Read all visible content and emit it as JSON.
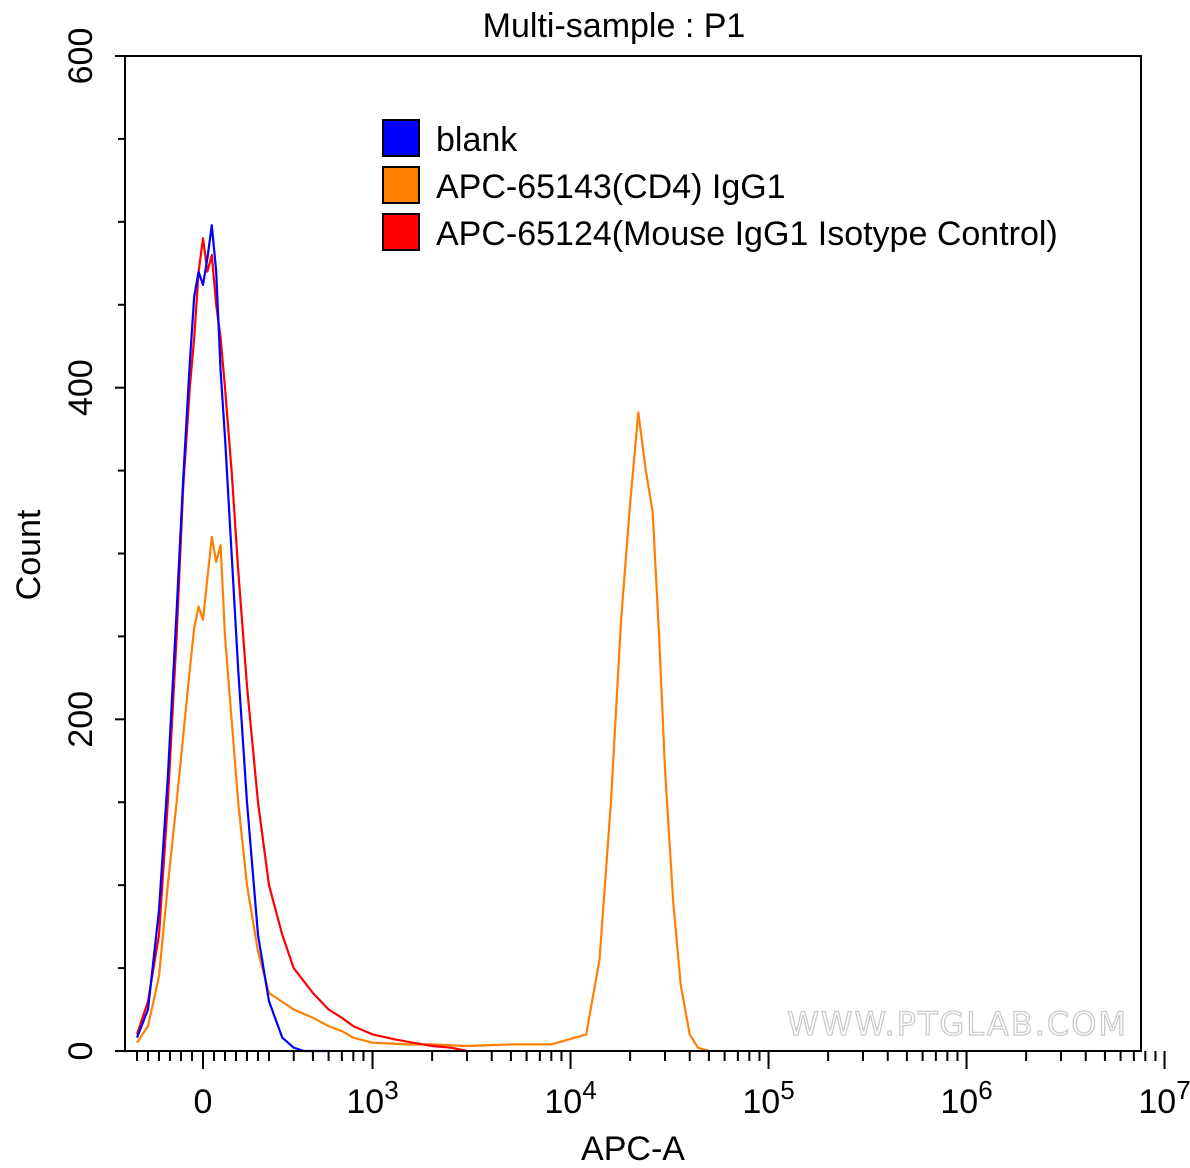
{
  "chart_data": {
    "type": "line",
    "title": "Multi-sample : P1",
    "xlabel": "APC-A",
    "ylabel": "Count",
    "x_scale": "biexponential",
    "xlim": [
      -300,
      10000000
    ],
    "ylim": [
      0,
      600
    ],
    "y_ticks": [
      {
        "value": 0,
        "label": "0"
      },
      {
        "value": 200,
        "label": "200"
      },
      {
        "value": 400,
        "label": "400"
      },
      {
        "value": 600,
        "label": "600"
      }
    ],
    "x_ticks": [
      {
        "value": 0,
        "base": "0",
        "exp": ""
      },
      {
        "value": 1000,
        "base": "10",
        "exp": "3"
      },
      {
        "value": 10000,
        "base": "10",
        "exp": "4"
      },
      {
        "value": 100000,
        "base": "10",
        "exp": "5"
      },
      {
        "value": 1000000,
        "base": "10",
        "exp": "6"
      },
      {
        "value": 10000000,
        "base": "10",
        "exp": "7"
      }
    ],
    "grid": false,
    "legend_position": "top-center",
    "watermark": "WWW.PTGLAB.COM",
    "series": [
      {
        "name": "blank",
        "color": "#0000ff",
        "x": [
          -300,
          -250,
          -200,
          -160,
          -120,
          -90,
          -60,
          -40,
          -20,
          0,
          20,
          40,
          60,
          80,
          100,
          130,
          160,
          200,
          250,
          300,
          350,
          400,
          450,
          500,
          550,
          600
        ],
        "y": [
          8,
          25,
          85,
          165,
          265,
          345,
          415,
          455,
          470,
          462,
          478,
          498,
          470,
          410,
          370,
          300,
          230,
          150,
          70,
          30,
          8,
          2,
          0,
          0,
          0,
          0
        ]
      },
      {
        "name": "APC-65143(CD4) IgG1",
        "color": "#ff8000",
        "x": [
          -300,
          -250,
          -200,
          -160,
          -120,
          -90,
          -60,
          -40,
          -20,
          0,
          20,
          40,
          60,
          80,
          100,
          130,
          160,
          200,
          250,
          300,
          400,
          500,
          600,
          700,
          800,
          1000,
          1500,
          2000,
          3000,
          5000,
          8000,
          12000,
          14000,
          16000,
          18000,
          20000,
          22000,
          24000,
          26000,
          28000,
          30000,
          33000,
          36000,
          40000,
          44000,
          50000
        ],
        "y": [
          5,
          15,
          45,
          100,
          150,
          190,
          230,
          255,
          268,
          260,
          285,
          310,
          295,
          305,
          250,
          200,
          150,
          100,
          60,
          35,
          25,
          20,
          15,
          12,
          8,
          5,
          4,
          4,
          3,
          4,
          4,
          10,
          55,
          150,
          260,
          330,
          385,
          350,
          325,
          250,
          170,
          90,
          40,
          10,
          2,
          0
        ]
      },
      {
        "name": "APC-65124(Mouse IgG1 Isotype Control)",
        "color": "#ff0000",
        "x": [
          -300,
          -250,
          -200,
          -160,
          -120,
          -90,
          -60,
          -40,
          -20,
          0,
          20,
          40,
          60,
          80,
          100,
          130,
          160,
          200,
          250,
          300,
          350,
          400,
          500,
          600,
          700,
          800,
          1000,
          1300,
          1600,
          2000,
          2500,
          3000
        ],
        "y": [
          10,
          30,
          70,
          150,
          250,
          340,
          400,
          430,
          470,
          490,
          470,
          480,
          450,
          430,
          400,
          350,
          290,
          220,
          150,
          100,
          70,
          50,
          35,
          25,
          20,
          15,
          10,
          7,
          5,
          3,
          2,
          0
        ]
      }
    ]
  }
}
